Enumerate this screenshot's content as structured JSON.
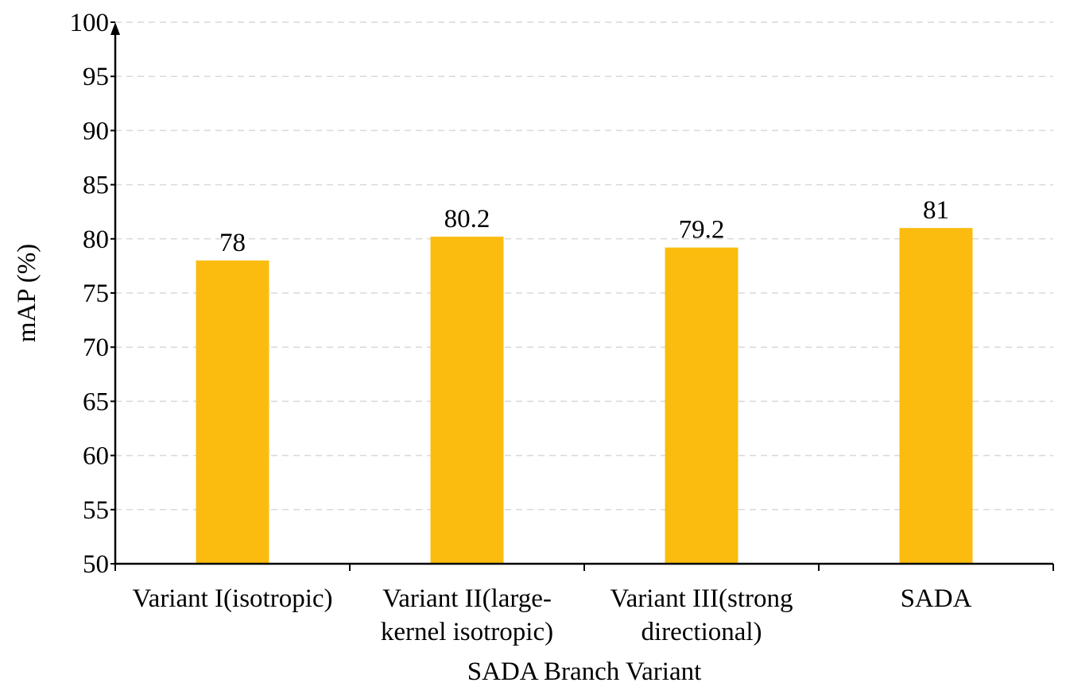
{
  "chart_data": {
    "type": "bar",
    "categories": [
      [
        "Variant I(isotropic)"
      ],
      [
        "Variant II(large-",
        "kernel isotropic)"
      ],
      [
        "Variant III(strong",
        "directional)"
      ],
      [
        "SADA"
      ]
    ],
    "values": [
      78,
      80.2,
      79.2,
      81
    ],
    "data_labels": [
      "78",
      "80.2",
      "79.2",
      "81"
    ],
    "title": "",
    "xlabel": "SADA Branch Variant",
    "ylabel": "mAP (%)",
    "ylim": [
      50,
      100
    ],
    "yticks": [
      50,
      55,
      60,
      65,
      70,
      75,
      80,
      85,
      90,
      95,
      100
    ],
    "grid": true,
    "legend": "none",
    "colors": {
      "bar": "#FBBC0F",
      "grid": "#d9d9d9",
      "axis": "#000000"
    }
  }
}
